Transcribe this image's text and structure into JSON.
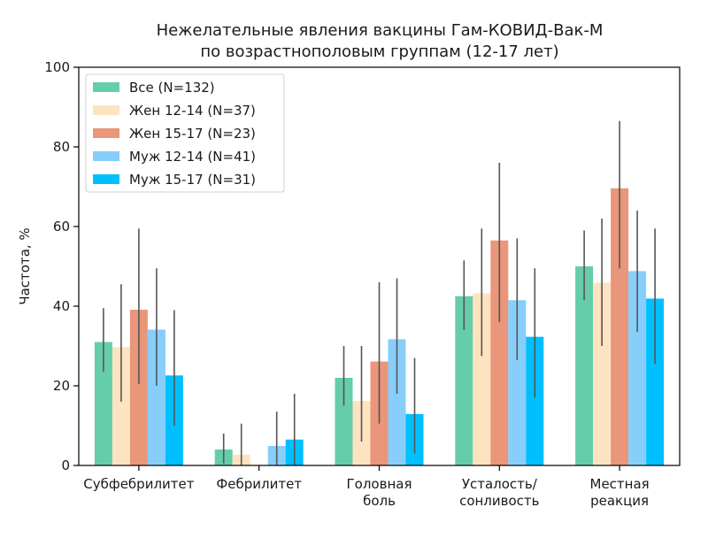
{
  "chart_data": {
    "type": "bar",
    "title": [
      "Нежелательные явления вакцины Гам-КОВИД-Вак-М",
      "по возрастнополовым группам (12-17 лет)"
    ],
    "xlabel": "",
    "ylabel": "Частота, %",
    "ylim": [
      0,
      100
    ],
    "yticks": [
      0,
      20,
      40,
      60,
      80,
      100
    ],
    "categories": [
      [
        "Субфебрилитет"
      ],
      [
        "Фебрилитет"
      ],
      [
        "Головная",
        "боль"
      ],
      [
        "Усталость/",
        "сонливость"
      ],
      [
        "Местная",
        "реакция"
      ]
    ],
    "legend_position": "top-left",
    "series": [
      {
        "name": "Все (N=132)",
        "color": "#66cdaa",
        "values": [
          31,
          4,
          22,
          42.5,
          50
        ],
        "err_low": [
          23.5,
          0.5,
          15,
          34,
          41.5
        ],
        "err_high": [
          39.5,
          8,
          30,
          51.5,
          59
        ]
      },
      {
        "name": "Жен 12-14 (N=37)",
        "color": "#fde3c0",
        "values": [
          29.7,
          2.7,
          16.2,
          43.2,
          45.9
        ],
        "err_low": [
          16,
          0,
          6,
          27.5,
          30
        ],
        "err_high": [
          45.5,
          10.5,
          30,
          59.5,
          62
        ]
      },
      {
        "name": "Жен 15-17 (N=23)",
        "color": "#e9967a",
        "values": [
          39.1,
          0,
          26.1,
          56.5,
          69.6
        ],
        "err_low": [
          20.5,
          0,
          10.5,
          36,
          49.5
        ],
        "err_high": [
          59.5,
          0,
          46,
          76,
          86.5
        ]
      },
      {
        "name": "Муж 12-14 (N=41)",
        "color": "#87cefa",
        "values": [
          34.1,
          4.9,
          31.7,
          41.5,
          48.8
        ],
        "err_low": [
          20,
          0,
          18,
          26.5,
          33.5
        ],
        "err_high": [
          49.5,
          13.5,
          47,
          57,
          64
        ]
      },
      {
        "name": "Муж 15-17 (N=31)",
        "color": "#00bfff",
        "values": [
          22.6,
          6.5,
          12.9,
          32.3,
          41.9
        ],
        "err_low": [
          10,
          0,
          3,
          17,
          25.5
        ],
        "err_high": [
          39,
          18,
          27,
          49.5,
          59.5
        ]
      }
    ]
  }
}
